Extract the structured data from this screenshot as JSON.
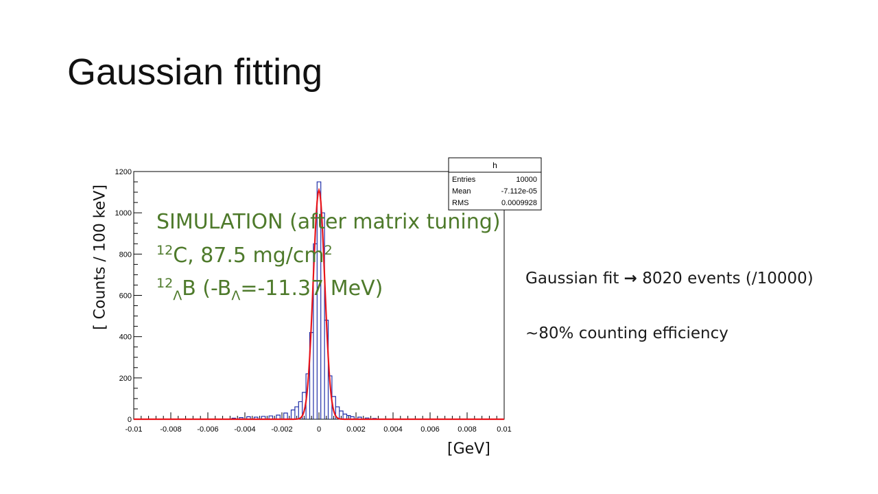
{
  "slide": {
    "title": "Gaussian fitting"
  },
  "chart_data": {
    "type": "bar",
    "title": "",
    "xlabel": "[GeV]",
    "ylabel": "[ Counts / 100 keV]",
    "xlim": [
      -0.01,
      0.01
    ],
    "ylim": [
      0,
      1200
    ],
    "xticks": [
      -0.01,
      -0.008,
      -0.006,
      -0.004,
      -0.002,
      0,
      0.002,
      0.004,
      0.006,
      0.008,
      0.01
    ],
    "xtick_labels": [
      "-0.01",
      "-0.008",
      "-0.006",
      "-0.004",
      "-0.002",
      "0",
      "0.002",
      "0.004",
      "0.006",
      "0.008",
      "0.01"
    ],
    "yticks": [
      0,
      200,
      400,
      600,
      800,
      1000,
      1200
    ],
    "ytick_labels": [
      "0",
      "200",
      "400",
      "600",
      "800",
      "1000",
      "1200"
    ],
    "grid": false,
    "series": [
      {
        "kind": "histogram",
        "color": "#1f2ea8",
        "bins": [
          [
            -0.0046,
            5
          ],
          [
            -0.0042,
            8
          ],
          [
            -0.0038,
            12
          ],
          [
            -0.0034,
            10
          ],
          [
            -0.003,
            14
          ],
          [
            -0.0026,
            16
          ],
          [
            -0.0022,
            20
          ],
          [
            -0.0018,
            30
          ],
          [
            -0.0014,
            45
          ],
          [
            -0.0012,
            60
          ],
          [
            -0.001,
            85
          ],
          [
            -0.0008,
            130
          ],
          [
            -0.0006,
            220
          ],
          [
            -0.0004,
            420
          ],
          [
            -0.0002,
            850
          ],
          [
            0,
            1150
          ],
          [
            0.0002,
            1000
          ],
          [
            0.0004,
            480
          ],
          [
            0.0006,
            210
          ],
          [
            0.0008,
            110
          ],
          [
            0.001,
            60
          ],
          [
            0.0012,
            40
          ],
          [
            0.0014,
            25
          ],
          [
            0.0016,
            18
          ],
          [
            0.0018,
            12
          ],
          [
            0.0022,
            10
          ],
          [
            0.0026,
            6
          ],
          [
            0.003,
            4
          ]
        ]
      },
      {
        "kind": "gaussian-fit",
        "color": "#e8141a",
        "amplitude": 1110,
        "mean": 0,
        "sigma": 0.00031
      }
    ],
    "stats_box": {
      "name": "h",
      "rows": [
        {
          "label": "Entries",
          "value": "10000"
        },
        {
          "label": "Mean",
          "value": "-7.112e-05"
        },
        {
          "label": "RMS",
          "value": "0.0009928"
        }
      ]
    }
  },
  "overlay": {
    "line1": "SIMULATION (after matrix tuning)",
    "line2_sup": "12",
    "line2_text": "C, 87.5 mg/cm",
    "line2_sup2": "2",
    "line3_sup": "12",
    "line3_sub": "Λ",
    "line3_text": "B (-B",
    "line3_sub2": "Λ",
    "line3_text2": "=-11.37 MeV)"
  },
  "side": {
    "fit_text": "Gaussian fit",
    "arrow": "→",
    "fit_result": "8020 events (/10000)",
    "efficiency": "~80% counting efficiency"
  },
  "colors": {
    "overlay_text": "#4e7a2b",
    "histogram": "#1f2ea8",
    "fit": "#e8141a"
  }
}
